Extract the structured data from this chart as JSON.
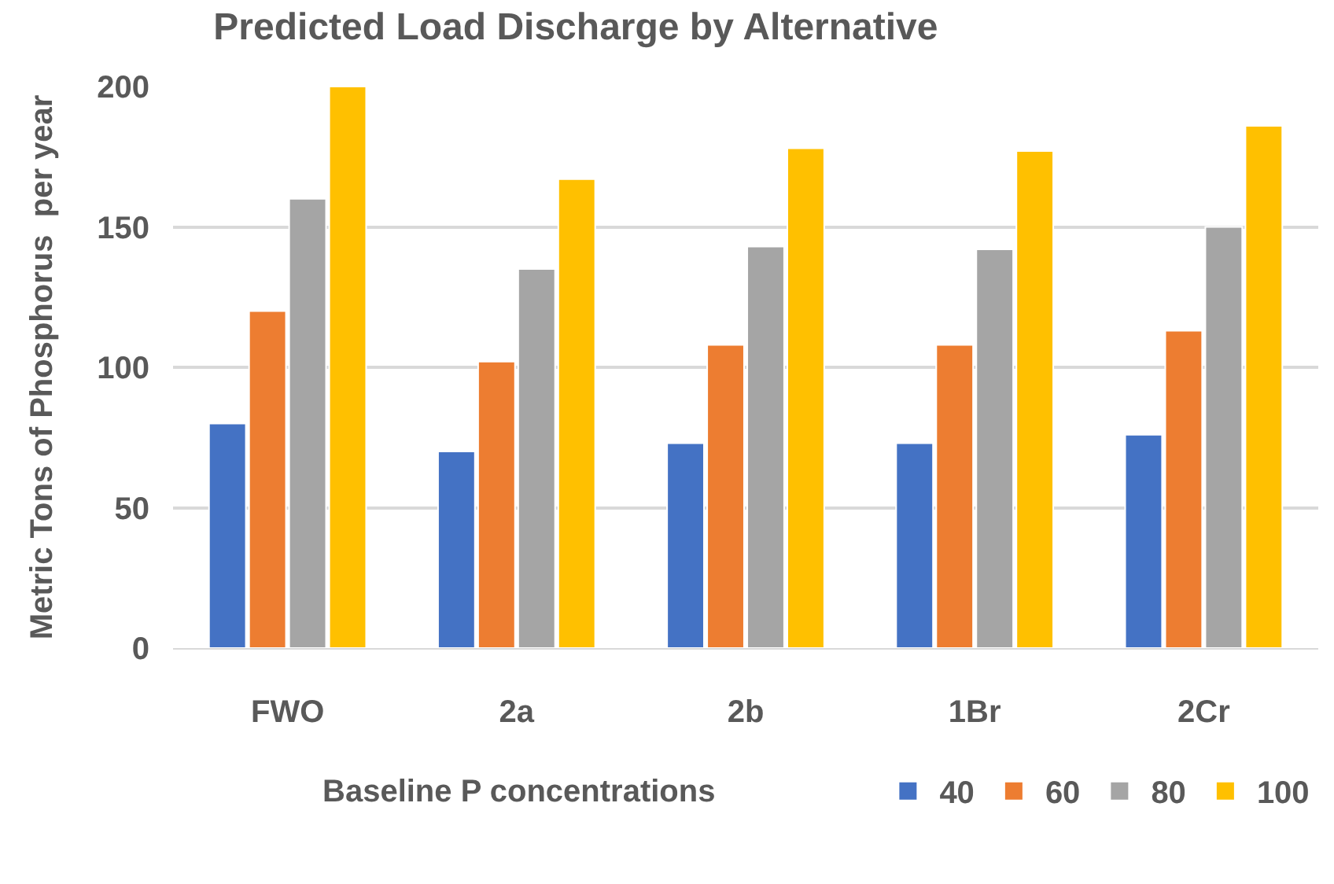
{
  "chart_data": {
    "type": "bar",
    "title": "Predicted Load Discharge by Alternative",
    "ylabel": "Metric Tons of Phosphorus  per year",
    "legend_title": "Baseline P concentrations",
    "categories": [
      "FWO",
      "2a",
      "2b",
      "1Br",
      "2Cr"
    ],
    "series": [
      {
        "name": "40",
        "color": "#4472c4",
        "values": [
          80,
          70,
          73,
          73,
          76
        ]
      },
      {
        "name": "60",
        "color": "#ed7d31",
        "values": [
          120,
          102,
          108,
          108,
          113
        ]
      },
      {
        "name": "80",
        "color": "#a5a5a5",
        "values": [
          160,
          135,
          143,
          142,
          150
        ]
      },
      {
        "name": "100",
        "color": "#ffc000",
        "values": [
          200,
          167,
          178,
          177,
          186
        ]
      }
    ],
    "ylim": [
      0,
      200
    ],
    "yticks": [
      0,
      50,
      100,
      150,
      200
    ],
    "grid": "y",
    "legend": "bottom"
  }
}
